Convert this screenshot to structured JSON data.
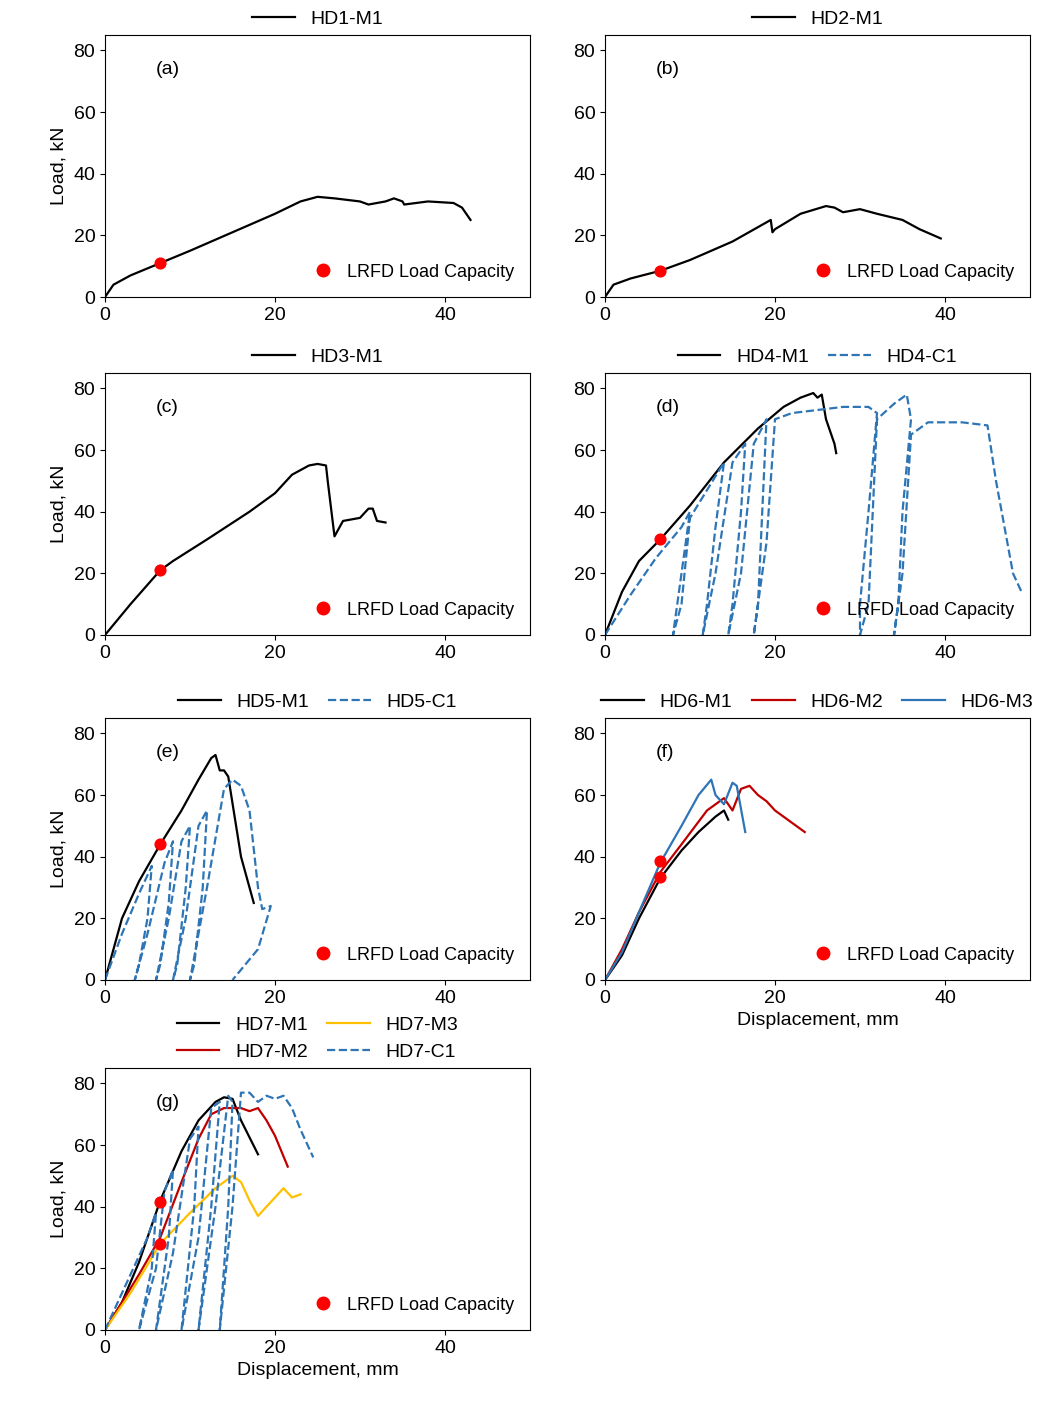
{
  "chart_data": [
    {
      "type": "line",
      "annotation": "(a)",
      "ylabel": "Load, kN",
      "xlim": [
        0,
        50
      ],
      "ylim": [
        0,
        85
      ],
      "xticks": [
        0,
        20,
        40
      ],
      "yticks": [
        0,
        20,
        40,
        60,
        80
      ],
      "legend": "lower right",
      "series": [
        {
          "name": "HD1-M1",
          "type": "line",
          "color": "#000000",
          "line_style": "solid",
          "x": [
            0,
            1,
            3,
            6.5,
            10,
            15,
            20,
            23,
            25,
            27,
            30,
            31,
            33,
            34,
            35,
            35.2,
            38,
            41,
            42,
            43
          ],
          "values": [
            0,
            4,
            7,
            11,
            15,
            21,
            27,
            31,
            32.5,
            32,
            31,
            30,
            31,
            32,
            31,
            30,
            31,
            30.5,
            29,
            25
          ]
        },
        {
          "name": "LRFD Load Capacity",
          "type": "scatter",
          "color": "#ff0000",
          "marker": "circle",
          "x": [
            6.5
          ],
          "values": [
            11
          ]
        }
      ]
    },
    {
      "type": "line",
      "annotation": "(b)",
      "xlim": [
        0,
        50
      ],
      "ylim": [
        0,
        85
      ],
      "xticks": [
        0,
        20,
        40
      ],
      "yticks": [
        0,
        20,
        40,
        60,
        80
      ],
      "legend": "lower right",
      "series": [
        {
          "name": "HD2-M1",
          "type": "line",
          "color": "#000000",
          "line_style": "solid",
          "x": [
            0,
            1,
            3,
            6.5,
            10,
            15,
            19.5,
            19.7,
            20,
            23,
            26,
            27,
            28,
            30,
            32,
            35,
            37,
            39.5
          ],
          "values": [
            0,
            4,
            6,
            8.5,
            12,
            18,
            25,
            21,
            22,
            27,
            29.5,
            29,
            27.5,
            28.5,
            27,
            25,
            22,
            19
          ]
        },
        {
          "name": "LRFD Load Capacity",
          "type": "scatter",
          "color": "#ff0000",
          "marker": "circle",
          "x": [
            6.5
          ],
          "values": [
            8.5
          ]
        }
      ]
    },
    {
      "type": "line",
      "annotation": "(c)",
      "ylabel": "Load, kN",
      "xlim": [
        0,
        50
      ],
      "ylim": [
        0,
        85
      ],
      "xticks": [
        0,
        20,
        40
      ],
      "yticks": [
        0,
        20,
        40,
        60,
        80
      ],
      "legend": "lower right",
      "series": [
        {
          "name": "HD3-M1",
          "type": "line",
          "color": "#000000",
          "line_style": "solid",
          "x": [
            0,
            3,
            6.5,
            8,
            12,
            17,
            20,
            22,
            24,
            25,
            26,
            26.2,
            27,
            28,
            30,
            31,
            31.5,
            32,
            33
          ],
          "values": [
            0,
            10,
            21,
            24,
            31,
            40,
            46,
            52,
            55,
            55.5,
            55,
            50,
            32,
            37,
            38,
            41,
            41,
            37,
            36.5
          ]
        },
        {
          "name": "LRFD Load Capacity",
          "type": "scatter",
          "color": "#ff0000",
          "marker": "circle",
          "x": [
            6.5
          ],
          "values": [
            21
          ]
        }
      ]
    },
    {
      "type": "line",
      "annotation": "(d)",
      "xlim": [
        0,
        50
      ],
      "ylim": [
        0,
        85
      ],
      "xticks": [
        0,
        20,
        40
      ],
      "yticks": [
        0,
        20,
        40,
        60,
        80
      ],
      "legend": "lower right",
      "series": [
        {
          "name": "HD4-M1",
          "type": "line",
          "color": "#000000",
          "line_style": "solid",
          "x": [
            0,
            2,
            4,
            6.5,
            10,
            14,
            18,
            21,
            23,
            24.5,
            25,
            25.5,
            26,
            27,
            27.2
          ],
          "values": [
            0,
            14,
            24,
            31,
            42,
            56,
            67,
            74,
            77,
            78.5,
            77,
            78,
            70,
            62,
            59
          ]
        },
        {
          "name": "HD4-C1",
          "type": "line",
          "color": "#2e75b6",
          "line_style": "dashed",
          "x": [
            0,
            3,
            6,
            9,
            10,
            9.5,
            8.5,
            8,
            9,
            10,
            12,
            14,
            13,
            12,
            11.5,
            13,
            15,
            16.5,
            16,
            15,
            14.5,
            16,
            17.5,
            19,
            18.5,
            18,
            17.5,
            19,
            20,
            22,
            25,
            28,
            31,
            32,
            31,
            30,
            30,
            31,
            32,
            34,
            35.5,
            36,
            35,
            34.5,
            34,
            35,
            36,
            38,
            42,
            45,
            46,
            48,
            49
          ],
          "values": [
            0,
            13,
            25,
            35,
            40,
            30,
            10,
            0,
            10,
            38,
            47,
            56,
            35,
            10,
            0,
            20,
            56,
            62,
            40,
            10,
            0,
            20,
            62,
            70,
            40,
            10,
            0,
            30,
            70,
            72,
            73,
            74,
            74,
            72,
            40,
            10,
            0,
            10,
            70,
            75,
            78,
            70,
            40,
            10,
            0,
            20,
            65,
            69,
            69,
            68,
            50,
            20,
            14
          ]
        },
        {
          "name": "LRFD Load Capacity",
          "type": "scatter",
          "color": "#ff0000",
          "marker": "circle",
          "x": [
            6.5
          ],
          "values": [
            31
          ]
        }
      ]
    },
    {
      "type": "line",
      "annotation": "(e)",
      "ylabel": "Load, kN",
      "xlim": [
        0,
        50
      ],
      "ylim": [
        0,
        85
      ],
      "xticks": [
        0,
        20,
        40
      ],
      "yticks": [
        0,
        20,
        40,
        60,
        80
      ],
      "legend": "lower right",
      "series": [
        {
          "name": "HD5-M1",
          "type": "line",
          "color": "#000000",
          "line_style": "solid",
          "x": [
            0,
            1,
            2,
            4,
            6.5,
            9,
            11,
            12.5,
            13,
            13.5,
            14,
            14.5,
            16,
            17.5
          ],
          "values": [
            0,
            10,
            20,
            32,
            44,
            55,
            65,
            72,
            73,
            68,
            68,
            66,
            40,
            25
          ]
        },
        {
          "name": "HD5-C1",
          "type": "line",
          "color": "#2e75b6",
          "line_style": "dashed",
          "x": [
            0,
            2,
            4,
            5.5,
            5,
            4,
            3.5,
            5,
            7,
            8,
            7.5,
            6.5,
            6,
            7.5,
            9,
            10,
            9.5,
            8.5,
            8,
            9.5,
            11,
            12,
            11.5,
            10.5,
            10,
            12,
            14,
            15,
            16,
            17,
            18,
            18.5,
            19.5,
            18,
            15
          ],
          "values": [
            0,
            15,
            28,
            37,
            20,
            5,
            0,
            15,
            38,
            45,
            25,
            5,
            0,
            20,
            45,
            50,
            30,
            5,
            0,
            20,
            50,
            55,
            30,
            5,
            0,
            30,
            62,
            65,
            63,
            55,
            30,
            23,
            24,
            10,
            0
          ]
        },
        {
          "name": "LRFD Load Capacity",
          "type": "scatter",
          "color": "#ff0000",
          "marker": "circle",
          "x": [
            6.5
          ],
          "values": [
            44
          ]
        }
      ]
    },
    {
      "type": "line",
      "annotation": "(f)",
      "xlabel": "Displacement, mm",
      "xlim": [
        0,
        50
      ],
      "ylim": [
        0,
        85
      ],
      "xticks": [
        0,
        20,
        40
      ],
      "yticks": [
        0,
        20,
        40,
        60,
        80
      ],
      "legend": "lower right",
      "series": [
        {
          "name": "HD6-M1",
          "type": "line",
          "color": "#000000",
          "line_style": "solid",
          "x": [
            0,
            2,
            4,
            6.5,
            9,
            11,
            13,
            14,
            14.5
          ],
          "values": [
            0,
            8,
            20,
            33,
            42,
            48,
            53,
            55,
            52
          ]
        },
        {
          "name": "HD6-M2",
          "type": "line",
          "color": "#c00000",
          "line_style": "solid",
          "x": [
            0,
            2,
            4,
            6.5,
            9,
            12,
            14,
            15,
            16,
            17,
            18,
            19,
            20,
            22,
            23.5
          ],
          "values": [
            0,
            10,
            22,
            35,
            44,
            55,
            59,
            55,
            62,
            63,
            60,
            58,
            55,
            51,
            48
          ]
        },
        {
          "name": "HD6-M3",
          "type": "line",
          "color": "#2e75b6",
          "line_style": "solid",
          "x": [
            0,
            2,
            4,
            6.5,
            9,
            11,
            12.5,
            13,
            14,
            15,
            15.5,
            16.5
          ],
          "values": [
            0,
            9,
            22,
            38,
            50,
            60,
            65,
            60,
            57,
            64,
            63,
            48
          ]
        },
        {
          "name": "LRFD Load Capacity",
          "type": "scatter",
          "color": "#ff0000",
          "marker": "circle",
          "x": [
            6.5,
            6.5
          ],
          "values": [
            38.5,
            33.5
          ]
        }
      ]
    },
    {
      "type": "line",
      "annotation": "(g)",
      "ylabel": "Load, kN",
      "xlabel": "Displacement, mm",
      "xlim": [
        0,
        50
      ],
      "ylim": [
        0,
        85
      ],
      "xticks": [
        0,
        20,
        40
      ],
      "yticks": [
        0,
        20,
        40,
        60,
        80
      ],
      "legend": "lower right",
      "series": [
        {
          "name": "HD7-M1",
          "type": "line",
          "color": "#000000",
          "line_style": "solid",
          "x": [
            0,
            2,
            4,
            6.5,
            9,
            11,
            13,
            14,
            15,
            16,
            18
          ],
          "values": [
            0,
            9,
            22,
            42,
            58,
            68,
            74,
            75.5,
            75,
            68,
            57
          ]
        },
        {
          "name": "HD7-M2",
          "type": "line",
          "color": "#c00000",
          "line_style": "solid",
          "x": [
            0,
            4,
            6.5,
            9,
            11,
            12.5,
            14,
            16,
            17,
            18,
            19,
            20,
            21.5
          ],
          "values": [
            0,
            18,
            30,
            48,
            62,
            70,
            72,
            72,
            71,
            72,
            68,
            63,
            53
          ]
        },
        {
          "name": "HD7-M3",
          "type": "line",
          "color": "#ffc000",
          "line_style": "solid",
          "x": [
            0,
            3,
            6.5,
            10,
            13,
            15,
            16,
            17,
            18,
            19,
            20,
            21,
            22,
            23
          ],
          "values": [
            0,
            12,
            28,
            38,
            46,
            50,
            48,
            42,
            37,
            40,
            43,
            46,
            43,
            44
          ]
        },
        {
          "name": "HD7-C1",
          "type": "line",
          "color": "#2e75b6",
          "line_style": "dashed",
          "x": [
            0,
            3,
            5,
            6,
            5.5,
            4,
            6,
            7,
            8,
            7.5,
            6,
            8,
            10,
            11,
            10.5,
            9,
            11,
            12.5,
            13.5,
            12.5,
            11,
            13,
            14.5,
            15,
            14.5,
            13.5,
            15,
            16,
            17,
            18,
            19,
            20,
            21,
            22,
            23,
            24.5
          ],
          "values": [
            0,
            18,
            30,
            38,
            20,
            0,
            20,
            45,
            52,
            30,
            0,
            25,
            62,
            66,
            40,
            0,
            30,
            72,
            74,
            40,
            0,
            40,
            76,
            74,
            40,
            0,
            40,
            77,
            77,
            74,
            76,
            75,
            76,
            72,
            65,
            56
          ]
        },
        {
          "name": "LRFD Load Capacity",
          "type": "scatter",
          "color": "#ff0000",
          "marker": "circle",
          "x": [
            6.5,
            6.5
          ],
          "values": [
            41.5,
            28
          ]
        }
      ]
    }
  ]
}
